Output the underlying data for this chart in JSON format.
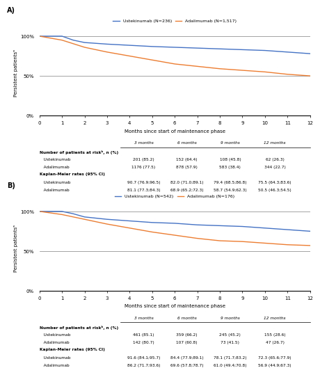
{
  "panel_A": {
    "title_label": "A)",
    "legend": {
      "ustek": "Ustekinumab (N=236)",
      "adali": "Adalimumab (N=1,517)"
    },
    "ustek_color": "#4472C4",
    "adali_color": "#ED7D31",
    "ustek_x": [
      0,
      1,
      1.5,
      2,
      3,
      4,
      5,
      6,
      7,
      8,
      9,
      10,
      11,
      12
    ],
    "ustek_y": [
      100,
      100,
      95,
      92,
      90,
      88.5,
      87,
      86,
      85,
      84,
      83,
      82,
      80,
      78
    ],
    "adali_x": [
      0,
      1,
      2,
      3,
      4,
      5,
      6,
      7,
      8,
      9,
      10,
      11,
      12
    ],
    "adali_y": [
      100,
      95,
      86,
      80,
      75,
      70,
      65,
      62,
      59,
      57,
      55,
      52,
      50
    ],
    "ylabel": "Persistent patientsᵃ",
    "xlabel": "Months since start of maintenance phase",
    "yticks": [
      0,
      50,
      100
    ],
    "yticklabels": [
      "0%",
      "50%",
      "100%"
    ],
    "xlim": [
      0,
      12
    ],
    "ylim": [
      0,
      107
    ],
    "hlines": [
      50,
      100
    ],
    "table_header": [
      "3 months",
      "6 months",
      "9 months",
      "12 months"
    ],
    "table_rows": [
      {
        "label": "Number of patients at riskᵇ, n (%)",
        "bold": true,
        "values": [
          "",
          "",
          "",
          ""
        ]
      },
      {
        "label": "   Ustekinumab",
        "bold": false,
        "values": [
          "201 (85.2)",
          "152 (64.4)",
          "108 (45.8)",
          "62 (26.3)"
        ]
      },
      {
        "label": "   Adalimumab",
        "bold": false,
        "values": [
          "1176 (77.5)",
          "878 (57.9)",
          "583 (38.4)",
          "344 (22.7)"
        ]
      },
      {
        "label": "Kaplan-Meier rates (95% CI)",
        "bold": true,
        "values": [
          "",
          "",
          "",
          ""
        ]
      },
      {
        "label": "   Ustekinumab",
        "bold": false,
        "values": [
          "90.7 (76.9;96.5)",
          "82.0 (71.0;89.1)",
          "79.4 (68.5;86.8)",
          "75.5 (64.3;83.6)"
        ]
      },
      {
        "label": "   Adalimumab",
        "bold": false,
        "values": [
          "81.1 (77.3;84.3)",
          "68.9 (65.2;72.3)",
          "58.7 (54.9;62.3)",
          "50.5 (46.3;54.5)"
        ]
      }
    ]
  },
  "panel_B": {
    "title_label": "B)",
    "legend": {
      "ustek": "Ustekinumab (N=542)",
      "adali": "Adalimumab (N=176)"
    },
    "ustek_color": "#4472C4",
    "adali_color": "#ED7D31",
    "ustek_x": [
      0,
      1,
      1.5,
      2,
      3,
      4,
      5,
      6,
      7,
      8,
      9,
      10,
      11,
      12
    ],
    "ustek_y": [
      100,
      100,
      97,
      93,
      90,
      88,
      86,
      85,
      83,
      82,
      81,
      79,
      77,
      75
    ],
    "adali_x": [
      0,
      1,
      2,
      3,
      4,
      5,
      6,
      7,
      8,
      9,
      10,
      11,
      12
    ],
    "adali_y": [
      100,
      96,
      90,
      84,
      79,
      74,
      70,
      66,
      63,
      62,
      60,
      58,
      57
    ],
    "ylabel": "Persistent patientsᵃ",
    "xlabel": "Months since start of maintenance phase",
    "yticks": [
      0,
      50,
      100
    ],
    "yticklabels": [
      "0%",
      "50%",
      "100%"
    ],
    "xlim": [
      0,
      12
    ],
    "ylim": [
      0,
      107
    ],
    "hlines": [
      50,
      100
    ],
    "table_header": [
      "3 months",
      "6 months",
      "9 months",
      "12 months"
    ],
    "table_rows": [
      {
        "label": "Number of patients at riskᵇ, n (%)",
        "bold": true,
        "values": [
          "",
          "",
          "",
          ""
        ]
      },
      {
        "label": "   Ustekinumab",
        "bold": false,
        "values": [
          "461 (85.1)",
          "359 (66.2)",
          "245 (45.2)",
          "155 (28.6)"
        ]
      },
      {
        "label": "   Adalimumab",
        "bold": false,
        "values": [
          "142 (80.7)",
          "107 (60.8)",
          "73 (41.5)",
          "47 (26.7)"
        ]
      },
      {
        "label": "Kaplan-Meier rates (95% CI)",
        "bold": true,
        "values": [
          "",
          "",
          "",
          ""
        ]
      },
      {
        "label": "   Ustekinumab",
        "bold": false,
        "values": [
          "91.6 (84.1;95.7)",
          "84.4 (77.9;89.1)",
          "78.1 (71.7;83.2)",
          "72.3 (65.6;77.9)"
        ]
      },
      {
        "label": "   Adalimumab",
        "bold": false,
        "values": [
          "86.2 (71.7;93.6)",
          "69.6 (57.8;78.7)",
          "61.0 (49.4;70.8)",
          "56.9 (44.9;67.3)"
        ]
      }
    ]
  },
  "background_color": "#ffffff"
}
